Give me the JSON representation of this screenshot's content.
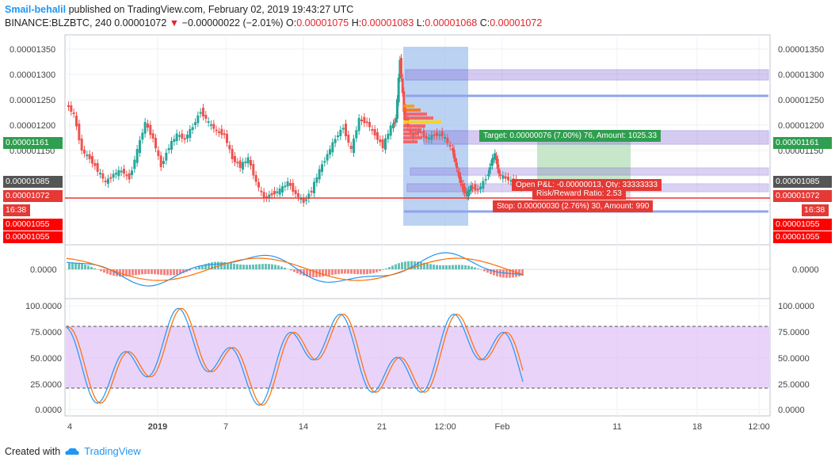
{
  "header": {
    "user": "Smail-behalil",
    "published": "published on TradingView.com, February 02, 2019 19:43:27 UTC",
    "symbol": "BINANCE:BLZBTC, 240",
    "last": "0.00001072",
    "change_arrow": "▼",
    "change": "−0.00000022 (−2.01%)",
    "o_label": "O:",
    "o": "0.00001075",
    "h_label": "H:",
    "h": "0.00001083",
    "l_label": "L:",
    "l": "0.00001068",
    "c_label": "C:",
    "c": "0.00001072"
  },
  "price_axis": [
    "0.00001350",
    "0.00001300",
    "0.00001250",
    "0.00001200",
    "0.00001150",
    "0.00001100",
    "0.00001050"
  ],
  "price_axis_right": [
    "0.00001350",
    "0.00001300",
    "0.00001250",
    "0.00001200",
    "0.00001150",
    "0.00001100"
  ],
  "price_tags": {
    "green": "0.00001161",
    "gray": "0.00001085",
    "red": "0.00001072",
    "time": "16:38",
    "stop1": "0.00001055",
    "stop2": "0.00001055"
  },
  "macd_axis": "0.0000",
  "stoch_axis": [
    "100.0000",
    "75.0000",
    "50.0000",
    "25.0000",
    "0.0000"
  ],
  "time_axis": [
    "4",
    "2019",
    "7",
    "14",
    "21",
    "12:00",
    "Feb",
    "11",
    "18",
    "12:00"
  ],
  "position": {
    "target": "Target: 0.00000076 (7.00%) 76, Amount: 1025.33",
    "pnl": "Open P&L: -0.00000013, Qty: 33333333",
    "rr": "Risk/Reward Ratio: 2.53",
    "stop": "Stop: 0.00000030 (2.76%) 30, Amount: 990"
  },
  "colors": {
    "up": "#26a69a",
    "down": "#ef5350",
    "accent": "#2196f3",
    "stop": "#ff0000",
    "target": "#4caf50"
  },
  "footer": {
    "created_with": "Created with",
    "brand": "TradingView",
    "logo_icon": "tradingview-cloud-icon"
  }
}
